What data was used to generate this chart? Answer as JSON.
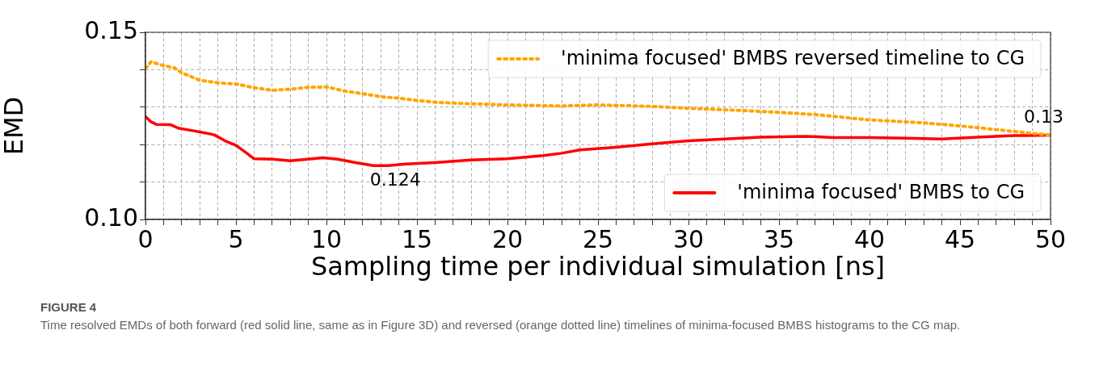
{
  "chart_data": {
    "type": "line",
    "xlabel": "Sampling time per individual simulation [ns]",
    "ylabel": "EMD",
    "xlim": [
      0,
      50
    ],
    "ylim": [
      0.1,
      0.15
    ],
    "xticks": [
      0,
      {
        "value": 1,
        "label": null
      },
      {
        "value": 2,
        "label": null
      },
      {
        "value": 3,
        "label": null
      },
      {
        "value": 4,
        "label": null
      },
      5,
      {
        "value": 6,
        "label": null
      },
      {
        "value": 7,
        "label": null
      },
      {
        "value": 8,
        "label": null
      },
      {
        "value": 9,
        "label": null
      },
      10,
      {
        "value": 11,
        "label": null
      },
      {
        "value": 12,
        "label": null
      },
      {
        "value": 13,
        "label": null
      },
      {
        "value": 14,
        "label": null
      },
      15,
      {
        "value": 16,
        "label": null
      },
      {
        "value": 17,
        "label": null
      },
      {
        "value": 18,
        "label": null
      },
      {
        "value": 19,
        "label": null
      },
      20,
      {
        "value": 21,
        "label": null
      },
      {
        "value": 22,
        "label": null
      },
      {
        "value": 23,
        "label": null
      },
      {
        "value": 24,
        "label": null
      },
      25,
      {
        "value": 26,
        "label": null
      },
      {
        "value": 27,
        "label": null
      },
      {
        "value": 28,
        "label": null
      },
      {
        "value": 29,
        "label": null
      },
      30,
      {
        "value": 31,
        "label": null
      },
      {
        "value": 32,
        "label": null
      },
      {
        "value": 33,
        "label": null
      },
      {
        "value": 34,
        "label": null
      },
      35,
      {
        "value": 36,
        "label": null
      },
      {
        "value": 37,
        "label": null
      },
      {
        "value": 38,
        "label": null
      },
      {
        "value": 39,
        "label": null
      },
      40,
      {
        "value": 41,
        "label": null
      },
      {
        "value": 42,
        "label": null
      },
      {
        "value": 43,
        "label": null
      },
      {
        "value": 44,
        "label": null
      },
      45,
      {
        "value": 46,
        "label": null
      },
      {
        "value": 47,
        "label": null
      },
      {
        "value": 48,
        "label": null
      },
      {
        "value": 49,
        "label": null
      },
      50
    ],
    "yticks": [
      {
        "value": 0.1,
        "label": "0.10"
      },
      {
        "value": 0.11,
        "label": null
      },
      {
        "value": 0.12,
        "label": null
      },
      {
        "value": 0.13,
        "label": null
      },
      {
        "value": 0.14,
        "label": null
      },
      0.15
    ],
    "grid": true,
    "legend": "right",
    "marker": "none",
    "series": [
      {
        "name": "'minima focused' BMBS reversed timeline to CG",
        "color": "#ffa500",
        "line_style": "dotted",
        "x": [
          0,
          0.3,
          1,
          1.6,
          2,
          3,
          4,
          5,
          6,
          7,
          8,
          9,
          10,
          11,
          12,
          13,
          14,
          15,
          16,
          18,
          20,
          23,
          25,
          28,
          30,
          33,
          35,
          37,
          40,
          43,
          45,
          47,
          50
        ],
        "values": [
          0.1403,
          0.1421,
          0.1411,
          0.1405,
          0.1392,
          0.1372,
          0.1365,
          0.1362,
          0.1352,
          0.1345,
          0.1348,
          0.1353,
          0.1354,
          0.1343,
          0.1336,
          0.1328,
          0.1324,
          0.1318,
          0.1313,
          0.1309,
          0.1306,
          0.1303,
          0.1306,
          0.1302,
          0.1297,
          0.1291,
          0.1286,
          0.128,
          0.1266,
          0.1258,
          0.125,
          0.124,
          0.1225
        ]
      },
      {
        "name": "'minima focused' BMBS to CG",
        "color": "#ff0000",
        "line_style": "solid",
        "x": [
          0,
          0.3,
          0.6,
          1.4,
          1.8,
          2.4,
          3,
          3.8,
          4.4,
          5,
          5.6,
          6,
          7,
          8,
          9,
          9.8,
          10.6,
          11.6,
          12.6,
          13.4,
          14.4,
          16,
          18,
          20,
          22,
          23,
          24,
          26,
          28,
          30,
          32,
          34,
          36.5,
          38,
          40,
          42,
          44,
          46,
          48,
          50
        ],
        "values": [
          0.1275,
          0.1261,
          0.1254,
          0.1253,
          0.1244,
          0.1239,
          0.1234,
          0.1226,
          0.121,
          0.1198,
          0.1177,
          0.1162,
          0.1161,
          0.1157,
          0.1161,
          0.1165,
          0.1161,
          0.1152,
          0.1144,
          0.1144,
          0.1148,
          0.1152,
          0.1159,
          0.1162,
          0.1171,
          0.1177,
          0.1186,
          0.1193,
          0.1202,
          0.121,
          0.1215,
          0.122,
          0.1222,
          0.1219,
          0.1219,
          0.1217,
          0.1215,
          0.122,
          0.1224,
          0.1225
        ]
      }
    ],
    "annotations": [
      {
        "text": "0.124",
        "x": 13,
        "y": 0.1144
      },
      {
        "text": "0.13",
        "x": 50,
        "y": 0.1225
      },
      "FIGURE 4",
      "Time resolved EMDs of both forward (red solid line, same as in Figure 3D) and reversed (orange dotted line) timelines of minima-focused BMBS histograms to the CG map."
    ]
  }
}
